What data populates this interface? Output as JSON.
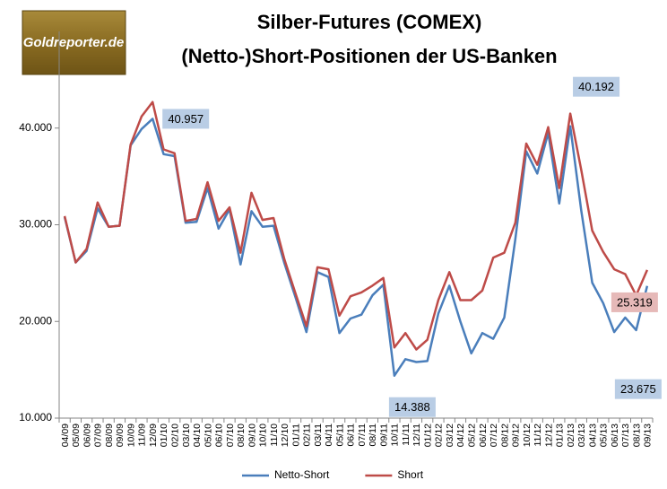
{
  "logo": "Goldreporter.de",
  "chart_data": {
    "type": "line",
    "title": [
      "Silber-Futures (COMEX)",
      "(Netto-)Short-Positionen der US-Banken"
    ],
    "categories": [
      "04/09",
      "05/09",
      "06/09",
      "07/09",
      "08/09",
      "09/09",
      "10/09",
      "11/09",
      "12/09",
      "01/10",
      "02/10",
      "03/10",
      "04/10",
      "05/10",
      "06/10",
      "07/10",
      "08/10",
      "09/10",
      "10/10",
      "11/10",
      "12/10",
      "01/11",
      "02/11",
      "03/11",
      "04/11",
      "05/11",
      "06/11",
      "07/11",
      "08/11",
      "09/11",
      "10/11",
      "11/11",
      "12/11",
      "01/12",
      "02/12",
      "03/12",
      "04/12",
      "05/12",
      "06/12",
      "07/12",
      "08/12",
      "09/12",
      "10/12",
      "11/12",
      "12/12",
      "01/13",
      "02/13",
      "03/13",
      "04/13",
      "05/13",
      "06/13",
      "07/13",
      "08/13",
      "09/13"
    ],
    "series": [
      {
        "name": "Netto-Short",
        "color": "#4a7ebb",
        "label_color": "#b9cde5",
        "values": [
          30800,
          26100,
          27300,
          31700,
          29800,
          29900,
          38200,
          39900,
          40957,
          37300,
          37100,
          30200,
          30300,
          33800,
          29600,
          31600,
          25900,
          31400,
          29800,
          29900,
          26000,
          22500,
          18900,
          25100,
          24600,
          18800,
          20300,
          20700,
          22700,
          23800,
          14388,
          16100,
          15800,
          15900,
          20800,
          23700,
          20000,
          16700,
          18800,
          18200,
          20400,
          28500,
          37600,
          35300,
          39500,
          32200,
          40192,
          31500,
          24000,
          21900,
          18900,
          20400,
          19100,
          23675
        ],
        "value_labels": [
          null,
          null,
          null,
          null,
          null,
          null,
          null,
          null,
          "40.957",
          null,
          null,
          null,
          null,
          null,
          null,
          null,
          null,
          null,
          null,
          null,
          null,
          null,
          null,
          null,
          null,
          null,
          null,
          null,
          null,
          null,
          "14.388",
          null,
          null,
          null,
          null,
          null,
          null,
          null,
          null,
          null,
          null,
          null,
          null,
          null,
          null,
          null,
          "40.192",
          null,
          null,
          null,
          null,
          null,
          null,
          "23.675"
        ]
      },
      {
        "name": "Short",
        "color": "#be4b48",
        "label_color": "#e6b9b8",
        "values": [
          30900,
          26100,
          27500,
          32300,
          29800,
          29900,
          38300,
          41200,
          42700,
          37800,
          37400,
          30400,
          30600,
          34400,
          30400,
          31800,
          27100,
          33300,
          30500,
          30700,
          26400,
          22900,
          19500,
          25600,
          25400,
          20600,
          22600,
          23000,
          23700,
          24500,
          17300,
          18800,
          17100,
          18100,
          22200,
          25100,
          22200,
          22200,
          23200,
          26600,
          27100,
          30200,
          38400,
          36200,
          40100,
          33800,
          41500,
          35700,
          29400,
          27200,
          25400,
          24900,
          22700,
          25319
        ],
        "value_labels": [
          null,
          null,
          null,
          null,
          null,
          null,
          null,
          null,
          null,
          null,
          null,
          null,
          null,
          null,
          null,
          null,
          null,
          null,
          null,
          null,
          null,
          null,
          null,
          null,
          null,
          null,
          null,
          null,
          null,
          null,
          null,
          null,
          null,
          null,
          null,
          null,
          null,
          null,
          null,
          null,
          null,
          null,
          null,
          null,
          null,
          null,
          null,
          null,
          null,
          null,
          null,
          null,
          null,
          "25.319"
        ]
      }
    ],
    "ylim": [
      10000,
      50000
    ],
    "yticks": [
      {
        "value": 10000,
        "label": "10.000"
      },
      {
        "value": 20000,
        "label": "20.000"
      },
      {
        "value": 30000,
        "label": "30.000"
      },
      {
        "value": 40000,
        "label": "40.000"
      }
    ],
    "grid": false,
    "legend": "bottom"
  }
}
